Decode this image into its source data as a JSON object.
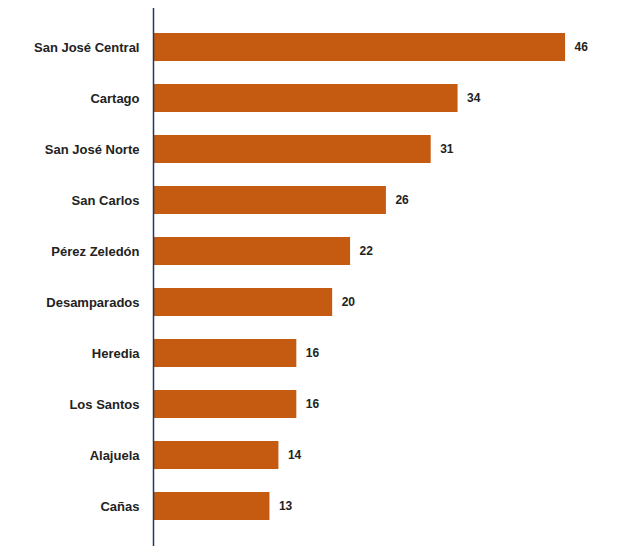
{
  "chart_data": {
    "type": "bar",
    "orientation": "horizontal",
    "categories": [
      "San José Central",
      "Cartago",
      "San José Norte",
      "San Carlos",
      "Pérez Zeledón",
      "Desamparados",
      "Heredia",
      "Los Santos",
      "Alajuela",
      "Cañas"
    ],
    "values": [
      46,
      34,
      31,
      26,
      22,
      20,
      16,
      16,
      14,
      13
    ],
    "color": "#c55a11",
    "xlim": [
      0,
      50
    ],
    "data_labels": true,
    "tick_labels": "y",
    "grid": false
  }
}
